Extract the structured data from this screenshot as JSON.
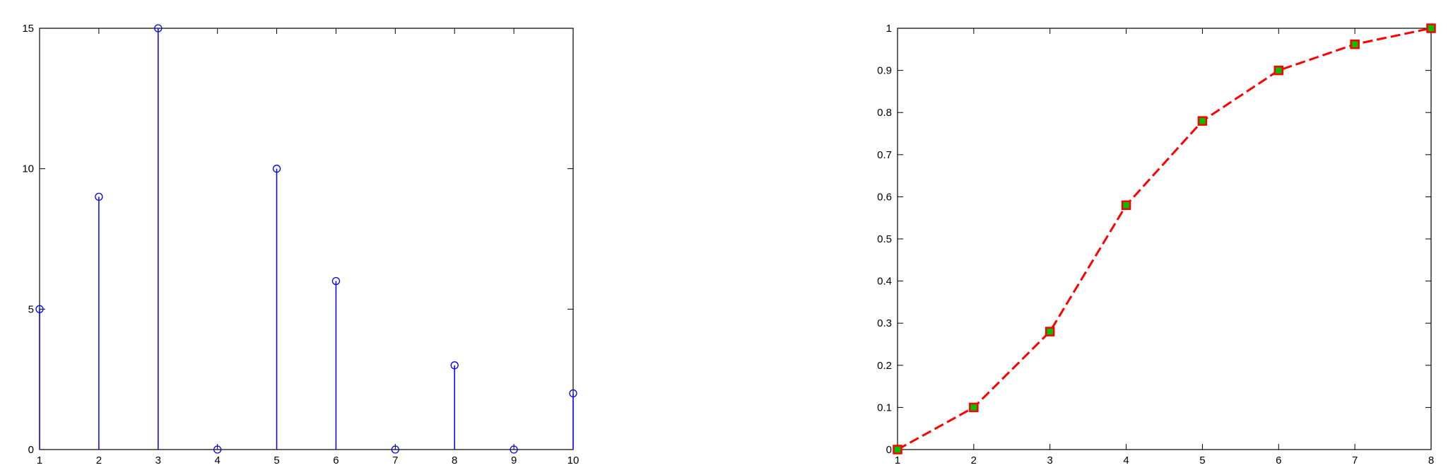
{
  "chart_data": [
    {
      "type": "stem",
      "title": "",
      "xlabel": "",
      "ylabel": "",
      "x": [
        1,
        2,
        3,
        4,
        5,
        6,
        7,
        8,
        9,
        10
      ],
      "values": [
        5,
        9,
        15,
        0,
        10,
        6,
        0,
        3,
        0,
        2
      ],
      "xlim": [
        1,
        10
      ],
      "ylim": [
        0,
        15
      ],
      "xticks": [
        "1",
        "2",
        "3",
        "4",
        "5",
        "6",
        "7",
        "8",
        "9",
        "10"
      ],
      "yticks": [
        "0",
        "5",
        "10",
        "15"
      ],
      "grid": false,
      "color": "#0000ff",
      "marker": "circle"
    },
    {
      "type": "line",
      "title": "",
      "xlabel": "",
      "ylabel": "",
      "x": [
        1,
        2,
        3,
        4,
        5,
        6,
        7,
        8
      ],
      "values": [
        0,
        0.1,
        0.28,
        0.58,
        0.78,
        0.9,
        0.962,
        1.0
      ],
      "xlim": [
        1,
        8
      ],
      "ylim": [
        0,
        1
      ],
      "xticks": [
        "1",
        "2",
        "3",
        "4",
        "5",
        "6",
        "7",
        "8"
      ],
      "yticks": [
        "0",
        "0.1",
        "0.2",
        "0.3",
        "0.4",
        "0.5",
        "0.6",
        "0.7",
        "0.8",
        "0.9",
        "1"
      ],
      "grid": false,
      "line_color": "#ff0000",
      "line_style": "dashed",
      "marker": "square",
      "marker_edge_color": "#ff0000",
      "marker_face_color": "#00c000"
    }
  ]
}
